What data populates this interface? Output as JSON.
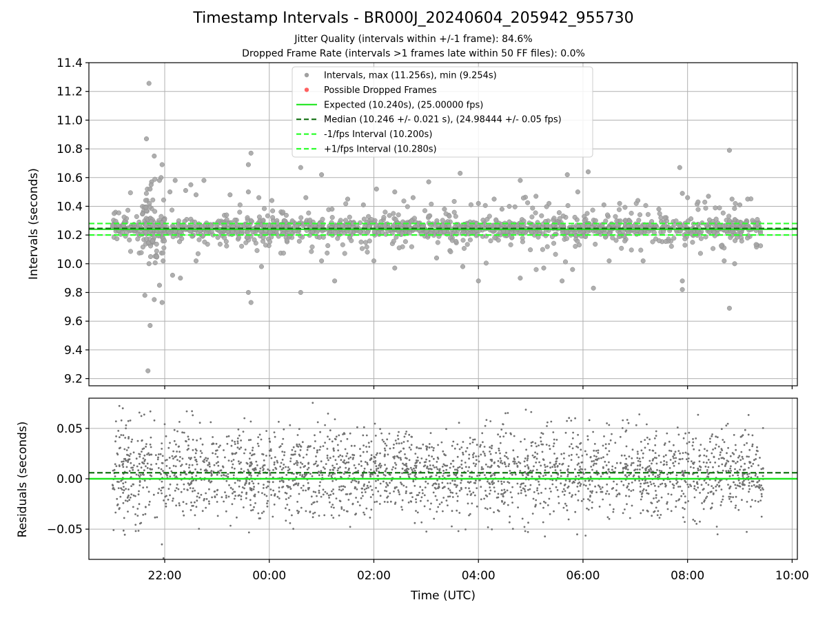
{
  "title": "Timestamp Intervals - BR000J_20240604_205942_955730",
  "subtitle1": "Jitter Quality (intervals within +/-1 frame): 84.6%",
  "subtitle2": "Dropped Frame Rate (intervals >1 frames late within 50 FF files): 0.0%",
  "colors": {
    "points": "#808080",
    "dropped": "#ff4444",
    "expected": "#1ee61e",
    "median": "#137013",
    "fps_band": "#2cff2c",
    "grid": "#b0b0b0"
  },
  "chart_data": [
    {
      "type": "scatter",
      "name": "intervals",
      "ylabel": "Intervals (seconds)",
      "xlabel": "",
      "x_is_time": true,
      "xlim_hours": [
        20.55,
        34.1
      ],
      "ylim": [
        9.15,
        11.4
      ],
      "yticks": [
        9.2,
        9.4,
        9.6,
        9.8,
        10.0,
        10.2,
        10.4,
        10.6,
        10.8,
        11.0,
        11.2,
        11.4
      ],
      "ytick_labels": [
        "9.2",
        "9.4",
        "9.6",
        "9.8",
        "10.0",
        "10.2",
        "10.4",
        "10.6",
        "10.8",
        "11.0",
        "11.2",
        "11.4"
      ],
      "grid": true,
      "legend_position": "top-center",
      "legend": [
        {
          "label": "Intervals, max (11.256s), min (9.254s)",
          "kind": "marker",
          "color": "#a0a0a0"
        },
        {
          "label": "Possible Dropped Frames",
          "kind": "marker",
          "color": "#ff6060"
        },
        {
          "label": "Expected (10.240s), (25.00000 fps)",
          "kind": "line",
          "color": "#1ee61e",
          "dash": "none"
        },
        {
          "label": "Median (10.246 +/- 0.021 s), (24.98444 +/- 0.05 fps)",
          "kind": "line",
          "color": "#137013",
          "dash": "7,4"
        },
        {
          "label": "-1/fps Interval (10.200s)",
          "kind": "line",
          "color": "#2cff2c",
          "dash": "7,4"
        },
        {
          "label": "+1/fps Interval (10.280s)",
          "kind": "line",
          "color": "#2cff2c",
          "dash": "7,4"
        }
      ],
      "reference_lines": {
        "expected": 10.24,
        "median": 10.246,
        "minus_fps": 10.2,
        "plus_fps": 10.28
      },
      "series": [
        {
          "name": "Intervals",
          "points": [
            [
              21.7,
              11.256
            ],
            [
              21.65,
              10.87
            ],
            [
              21.8,
              10.75
            ],
            [
              21.95,
              10.69
            ],
            [
              21.93,
              10.6
            ],
            [
              21.9,
              10.58
            ],
            [
              21.75,
              10.57
            ],
            [
              21.74,
              10.55
            ],
            [
              21.72,
              10.52
            ],
            [
              22.1,
              10.5
            ],
            [
              22.2,
              10.58
            ],
            [
              22.5,
              10.55
            ],
            [
              22.4,
              10.51
            ],
            [
              22.75,
              10.58
            ],
            [
              22.6,
              10.48
            ],
            [
              23.25,
              10.48
            ],
            [
              23.6,
              10.69
            ],
            [
              23.65,
              10.77
            ],
            [
              23.6,
              10.5
            ],
            [
              23.8,
              10.46
            ],
            [
              24.05,
              10.44
            ],
            [
              24.6,
              10.67
            ],
            [
              24.7,
              10.46
            ],
            [
              25.0,
              10.62
            ],
            [
              25.2,
              10.38
            ],
            [
              25.5,
              10.45
            ],
            [
              25.8,
              10.41
            ],
            [
              26.05,
              10.52
            ],
            [
              26.4,
              10.5
            ],
            [
              26.75,
              10.46
            ],
            [
              27.05,
              10.57
            ],
            [
              27.35,
              10.38
            ],
            [
              27.65,
              10.63
            ],
            [
              28.0,
              10.42
            ],
            [
              28.3,
              10.45
            ],
            [
              28.45,
              10.38
            ],
            [
              28.8,
              10.58
            ],
            [
              29.1,
              10.47
            ],
            [
              29.35,
              10.42
            ],
            [
              29.7,
              10.62
            ],
            [
              29.9,
              10.5
            ],
            [
              30.1,
              10.64
            ],
            [
              30.4,
              10.41
            ],
            [
              30.7,
              10.42
            ],
            [
              31.05,
              10.44
            ],
            [
              31.45,
              10.38
            ],
            [
              31.85,
              10.67
            ],
            [
              31.9,
              10.49
            ],
            [
              32.0,
              10.46
            ],
            [
              32.2,
              10.43
            ],
            [
              32.4,
              10.47
            ],
            [
              32.8,
              10.79
            ],
            [
              32.85,
              10.45
            ],
            [
              33.0,
              10.41
            ],
            [
              33.15,
              10.45
            ],
            [
              21.68,
              9.254
            ],
            [
              21.72,
              9.57
            ],
            [
              21.62,
              9.78
            ],
            [
              21.8,
              9.75
            ],
            [
              21.9,
              9.85
            ],
            [
              21.95,
              9.73
            ],
            [
              21.7,
              10.0
            ],
            [
              21.85,
              10.05
            ],
            [
              21.97,
              10.02
            ],
            [
              22.15,
              9.92
            ],
            [
              22.3,
              9.9
            ],
            [
              22.6,
              10.02
            ],
            [
              23.6,
              9.8
            ],
            [
              23.65,
              9.73
            ],
            [
              23.85,
              9.98
            ],
            [
              24.6,
              9.8
            ],
            [
              25.0,
              10.02
            ],
            [
              25.25,
              9.88
            ],
            [
              26.0,
              10.02
            ],
            [
              26.4,
              9.97
            ],
            [
              27.2,
              10.04
            ],
            [
              27.7,
              9.98
            ],
            [
              28.0,
              9.88
            ],
            [
              28.8,
              9.9
            ],
            [
              29.25,
              9.97
            ],
            [
              29.6,
              9.88
            ],
            [
              29.8,
              9.96
            ],
            [
              30.2,
              9.83
            ],
            [
              30.5,
              10.02
            ],
            [
              31.15,
              10.02
            ],
            [
              31.9,
              9.88
            ],
            [
              31.9,
              9.82
            ],
            [
              32.7,
              10.02
            ],
            [
              32.8,
              9.69
            ],
            [
              32.9,
              10.0
            ]
          ]
        }
      ],
      "band_range": [
        21.0,
        33.45
      ]
    },
    {
      "type": "scatter",
      "name": "residuals",
      "ylabel": "Residuals (seconds)",
      "xlabel": "Time (UTC)",
      "xlim_hours": [
        20.55,
        34.1
      ],
      "ylim": [
        -0.08,
        0.08
      ],
      "yticks": [
        -0.05,
        0.0,
        0.05
      ],
      "ytick_labels": [
        "−0.05",
        "0.00",
        "0.05"
      ],
      "xticks_hours": [
        22,
        24,
        26,
        28,
        30,
        32,
        34
      ],
      "xtick_labels": [
        "22:00",
        "00:00",
        "02:00",
        "04:00",
        "06:00",
        "08:00",
        "10:00"
      ],
      "grid": true,
      "reference_lines": {
        "zero": 0.0,
        "median_offset": 0.006
      },
      "residual_spread_std": 0.021,
      "band_range": [
        21.0,
        33.45
      ]
    }
  ]
}
